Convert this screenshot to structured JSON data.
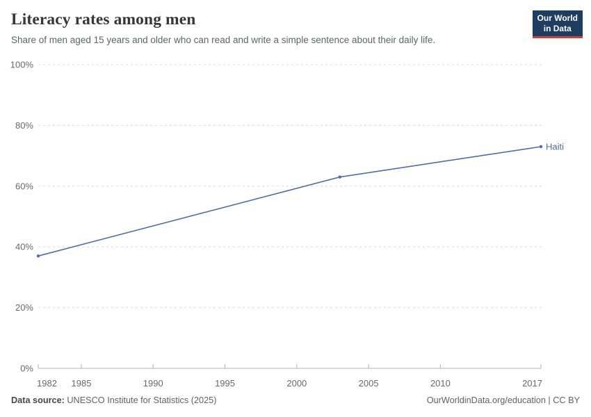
{
  "header": {
    "title": "Literacy rates among men",
    "subtitle": "Share of men aged 15 years and older who can read and write a simple sentence about their daily life."
  },
  "logo": {
    "line1": "Our World",
    "line2": "in Data",
    "background_color": "#1d3d63",
    "accent_color": "#d93a2e"
  },
  "chart_data": {
    "type": "line",
    "title": "Literacy rates among men",
    "xlabel": "",
    "ylabel": "",
    "xlim": [
      1982,
      2017
    ],
    "ylim": [
      0,
      100
    ],
    "x_ticks": [
      1982,
      1985,
      1990,
      1995,
      2000,
      2005,
      2010,
      2017
    ],
    "y_ticks": [
      0,
      20,
      40,
      60,
      80,
      100
    ],
    "y_tick_suffix": "%",
    "grid": true,
    "legend_position": "end-of-line-label",
    "series": [
      {
        "name": "Haiti",
        "color": "#4c6da9",
        "points": [
          {
            "x": 1982,
            "y": 37
          },
          {
            "x": 2003,
            "y": 63
          },
          {
            "x": 2017,
            "y": 73
          }
        ]
      }
    ]
  },
  "footer": {
    "source_label": "Data source:",
    "source_text": " UNESCO Institute for Statistics (2025)",
    "credit": "OurWorldinData.org/education | CC BY"
  },
  "colors": {
    "gridline": "#dcdcdc",
    "axis": "#b3b3b3",
    "tick_label": "#696969",
    "line": "#4c6da9"
  }
}
